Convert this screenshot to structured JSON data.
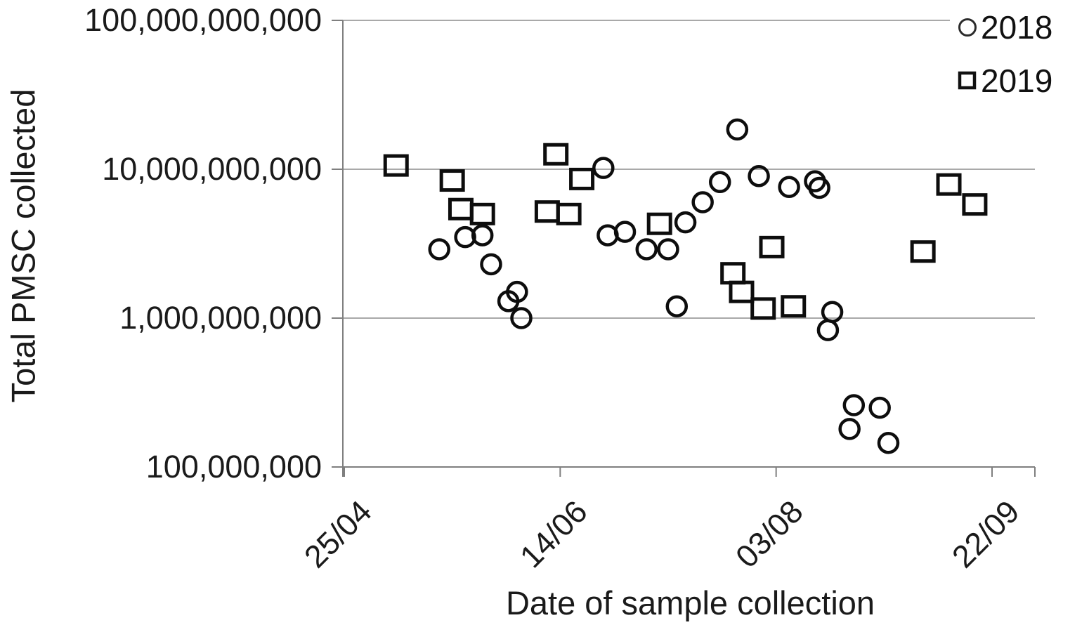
{
  "chart_data": {
    "type": "scatter",
    "title": "",
    "xlabel": "Date of sample collection",
    "ylabel": "Total PMSC collected",
    "y_scale": "log",
    "ylim": [
      100000000,
      100000000000
    ],
    "y_ticks": [
      "100,000,000,000",
      "10,000,000,000",
      "1,000,000,000",
      "100,000,000"
    ],
    "y_tick_values": [
      100000000000,
      10000000000,
      1000000000,
      100000000
    ],
    "x_ticks": [
      "25/04",
      "14/06",
      "03/08",
      "22/09"
    ],
    "x_tick_days": [
      0,
      50,
      100,
      150
    ],
    "grid": "horizontal",
    "legend_position": "top-right",
    "colors": {
      "marker": "#0d0d0d",
      "gridline": "#a9a9a9",
      "axis": "#7f7f7f",
      "text": "#1a1a1a"
    },
    "series": [
      {
        "name": "2018",
        "marker": "circle",
        "points": [
          {
            "date": "17/05",
            "day": 22,
            "value": 2900000000
          },
          {
            "date": "23/05",
            "day": 28,
            "value": 3500000000
          },
          {
            "date": "27/05",
            "day": 32,
            "value": 3600000000
          },
          {
            "date": "29/05",
            "day": 34,
            "value": 2300000000
          },
          {
            "date": "02/06",
            "day": 38,
            "value": 1300000000
          },
          {
            "date": "04/06",
            "day": 40,
            "value": 1500000000
          },
          {
            "date": "05/06",
            "day": 41,
            "value": 1000000000
          },
          {
            "date": "24/06",
            "day": 60,
            "value": 10200000000
          },
          {
            "date": "25/06",
            "day": 61,
            "value": 3600000000
          },
          {
            "date": "29/06",
            "day": 65,
            "value": 3800000000
          },
          {
            "date": "04/07",
            "day": 70,
            "value": 2900000000
          },
          {
            "date": "09/07",
            "day": 75,
            "value": 2900000000
          },
          {
            "date": "11/07",
            "day": 77,
            "value": 1200000000
          },
          {
            "date": "13/07",
            "day": 79,
            "value": 4400000000
          },
          {
            "date": "17/07",
            "day": 83,
            "value": 6000000000
          },
          {
            "date": "21/07",
            "day": 87,
            "value": 8200000000
          },
          {
            "date": "25/07",
            "day": 91,
            "value": 18500000000
          },
          {
            "date": "30/07",
            "day": 96,
            "value": 9000000000
          },
          {
            "date": "06/08",
            "day": 103,
            "value": 7600000000
          },
          {
            "date": "12/08",
            "day": 109,
            "value": 8300000000
          },
          {
            "date": "13/08",
            "day": 110,
            "value": 7500000000
          },
          {
            "date": "15/08",
            "day": 112,
            "value": 830000000
          },
          {
            "date": "16/08",
            "day": 113,
            "value": 1100000000
          },
          {
            "date": "20/08",
            "day": 117,
            "value": 180000000
          },
          {
            "date": "21/08",
            "day": 118,
            "value": 260000000
          },
          {
            "date": "27/08",
            "day": 124,
            "value": 250000000
          },
          {
            "date": "29/08",
            "day": 126,
            "value": 145000000
          }
        ]
      },
      {
        "name": "2019",
        "marker": "square",
        "points": [
          {
            "date": "07/05",
            "day": 12,
            "value": 10600000000
          },
          {
            "date": "20/05",
            "day": 25,
            "value": 8400000000
          },
          {
            "date": "22/05",
            "day": 27,
            "value": 5400000000
          },
          {
            "date": "27/05",
            "day": 32,
            "value": 5000000000
          },
          {
            "date": "11/06",
            "day": 47,
            "value": 5200000000
          },
          {
            "date": "13/06",
            "day": 49,
            "value": 12600000000
          },
          {
            "date": "16/06",
            "day": 52,
            "value": 5000000000
          },
          {
            "date": "19/06",
            "day": 55,
            "value": 8600000000
          },
          {
            "date": "07/07",
            "day": 73,
            "value": 4300000000
          },
          {
            "date": "24/07",
            "day": 90,
            "value": 2000000000
          },
          {
            "date": "26/07",
            "day": 92,
            "value": 1500000000
          },
          {
            "date": "31/07",
            "day": 97,
            "value": 1160000000
          },
          {
            "date": "02/08",
            "day": 99,
            "value": 3000000000
          },
          {
            "date": "07/08",
            "day": 104,
            "value": 1200000000
          },
          {
            "date": "06/09",
            "day": 134,
            "value": 2800000000
          },
          {
            "date": "12/09",
            "day": 140,
            "value": 7900000000
          },
          {
            "date": "18/09",
            "day": 146,
            "value": 5800000000
          }
        ]
      }
    ]
  }
}
